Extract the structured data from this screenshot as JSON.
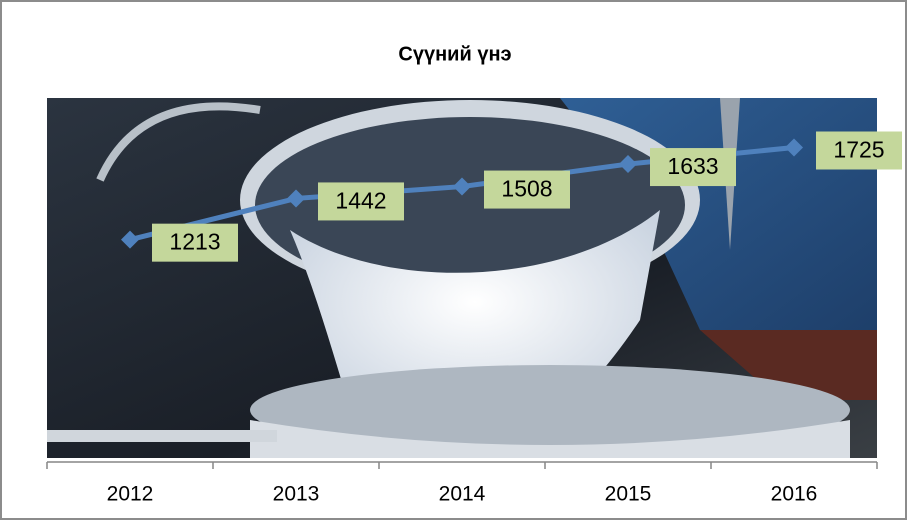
{
  "chart_data": {
    "type": "line",
    "title": "Сүүний үнэ",
    "categories": [
      "2012",
      "2013",
      "2014",
      "2015",
      "2016"
    ],
    "series": [
      {
        "values": [
          1213,
          1442,
          1508,
          1633,
          1725
        ],
        "color": "#4f81bd"
      }
    ],
    "ylim": [
      0,
      2000
    ],
    "label_color": "#c4d79b"
  }
}
